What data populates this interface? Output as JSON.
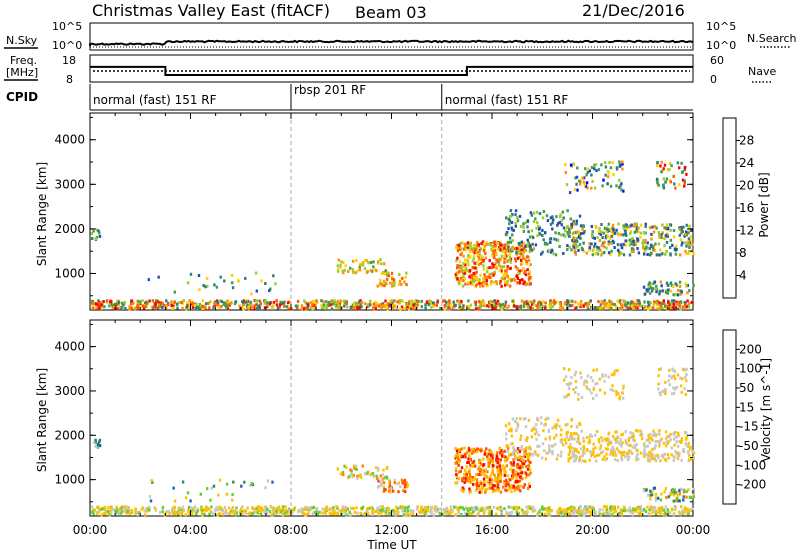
{
  "header": {
    "title": "Christmas Valley East (fitACF)",
    "beam": "Beam 03",
    "date": "21/Dec/2016"
  },
  "strip_labels": {
    "nsky": "N.Sky",
    "nsky_top": "10^5",
    "nsky_bottom": "10^0",
    "nsearch": "N.Search",
    "nsearch_top": "10^5",
    "nsearch_bottom": "10^0",
    "freq_line1": "Freq.",
    "freq_line2": "[MHz]",
    "freq_top": "18",
    "freq_bottom": "8",
    "nave": "Nave",
    "nave_top": "60",
    "nave_bottom": "0",
    "cpid": "CPID"
  },
  "cpid_segments": [
    {
      "start_hour": 0,
      "end_hour": 8,
      "label": "normal (fast) 151 RF"
    },
    {
      "start_hour": 8,
      "end_hour": 14,
      "label": "rbsp 201 RF"
    },
    {
      "start_hour": 14,
      "end_hour": 24,
      "label": "normal (fast) 151 RF"
    }
  ],
  "colors": {
    "power_scale": [
      "#0000ff",
      "#1f4fb3",
      "#2e7d7d",
      "#3f9e4a",
      "#9acd32",
      "#ffd000",
      "#ff9000",
      "#ff5a00",
      "#ff0000"
    ],
    "velocity_scale": [
      "#0000dd",
      "#1f5fbf",
      "#2e8b57",
      "#66cc33",
      "#c8c8c8",
      "#ffc000",
      "#ff8000",
      "#ff4000",
      "#ff0000"
    ]
  },
  "chart_data": [
    {
      "type": "line",
      "name": "frequency-strip",
      "ylabel": "Freq. [MHz]",
      "ylim": [
        8,
        18
      ],
      "x": [
        0,
        3,
        3,
        15,
        15,
        24
      ],
      "series": [
        {
          "values": [
            13.6,
            13.6,
            10.6,
            10.6,
            13.6,
            13.6
          ]
        }
      ]
    },
    {
      "type": "heatmap",
      "name": "power",
      "xlabel": "",
      "ylabel": "Slant Range [km]",
      "xlim": [
        0,
        24
      ],
      "ylim": [
        180,
        4600
      ],
      "yticks": [
        "1000",
        "2000",
        "3000",
        "4000"
      ],
      "colorbar_label": "Power [dB]",
      "colorbar_ticks": [
        "4",
        "8",
        "12",
        "16",
        "20",
        "24",
        "28"
      ],
      "colorbar_range": [
        0,
        30
      ]
    },
    {
      "type": "heatmap",
      "name": "velocity",
      "xlabel": "Time UT",
      "ylabel": "Slant Range [km]",
      "xlim": [
        0,
        24
      ],
      "ylim": [
        180,
        4600
      ],
      "xticks": [
        "00:00",
        "04:00",
        "08:00",
        "12:00",
        "16:00",
        "20:00",
        "00:00"
      ],
      "yticks": [
        "1000",
        "2000",
        "3000",
        "4000"
      ],
      "colorbar_label": "Velocity [m s^-1]",
      "colorbar_ticks": [
        "200",
        "100",
        "50",
        "15",
        "-15",
        "-50",
        "-100",
        "-200"
      ]
    }
  ]
}
